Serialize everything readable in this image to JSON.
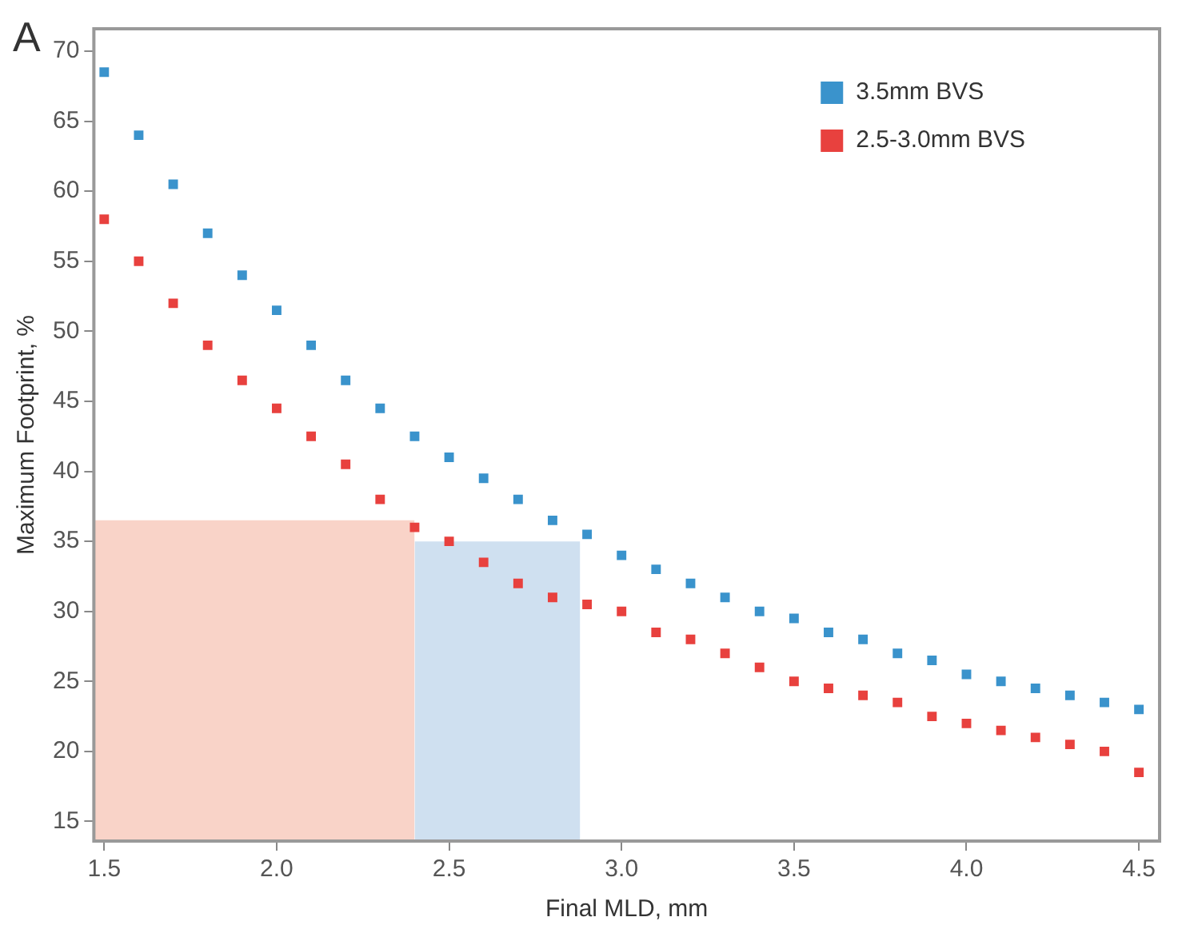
{
  "chart_data": {
    "type": "scatter",
    "xlabel": "Final MLD, mm",
    "ylabel": "Maximum Footprint, %",
    "annotations": [
      "A"
    ],
    "xlim": [
      1.47,
      4.56
    ],
    "xticks": [
      {
        "value": 1.5,
        "label": "1.5"
      },
      {
        "value": 2,
        "label": "2.0"
      },
      {
        "value": 2.5,
        "label": "2.5"
      },
      {
        "value": 3,
        "label": "3.0"
      },
      {
        "value": 3.5,
        "label": "3.5"
      },
      {
        "value": 4,
        "label": "4.0"
      },
      {
        "value": 4.5,
        "label": "4.5"
      }
    ],
    "ylim": [
      13.6,
      71.6
    ],
    "yticks": [
      15,
      20,
      25,
      30,
      35,
      40,
      45,
      50,
      55,
      60,
      65,
      70
    ],
    "grid": false,
    "legend": "top right",
    "marker": "square",
    "series": [
      {
        "type": "area",
        "marker": "none",
        "color": "#f9d3c8",
        "x": [
          1.47,
          2.4
        ],
        "values": [
          36.5,
          36.5
        ]
      },
      {
        "type": "area",
        "marker": "none",
        "color": "#cfe0f0",
        "x": [
          2.4,
          2.88
        ],
        "values": [
          35,
          35
        ]
      },
      {
        "name": "3.5mm BVS",
        "color": "#3a93cc",
        "x": [
          1.5,
          1.6,
          1.7,
          1.8,
          1.9,
          2.0,
          2.1,
          2.2,
          2.3,
          2.4,
          2.5,
          2.6,
          2.7,
          2.8,
          2.9,
          3.0,
          3.1,
          3.2,
          3.3,
          3.4,
          3.5,
          3.6,
          3.7,
          3.8,
          3.9,
          4.0,
          4.1,
          4.2,
          4.3,
          4.4,
          4.5
        ],
        "values": [
          68.5,
          64,
          60.5,
          57,
          54,
          51.5,
          49,
          46.5,
          44.5,
          42.5,
          41,
          39.5,
          38,
          36.5,
          35.5,
          34,
          33,
          32,
          31,
          30,
          29.5,
          28.5,
          28,
          27,
          26.5,
          25.5,
          25,
          24.5,
          24,
          23.5,
          23
        ]
      },
      {
        "name": "2.5-3.0mm BVS",
        "color": "#e8413e",
        "x": [
          1.5,
          1.6,
          1.7,
          1.8,
          1.9,
          2.0,
          2.1,
          2.2,
          2.3,
          2.4,
          2.5,
          2.6,
          2.7,
          2.8,
          2.9,
          3.0,
          3.1,
          3.2,
          3.3,
          3.4,
          3.5,
          3.6,
          3.7,
          3.8,
          3.9,
          4.0,
          4.1,
          4.2,
          4.3,
          4.4,
          4.5
        ],
        "values": [
          58,
          55,
          52,
          49,
          46.5,
          44.5,
          42.5,
          40.5,
          38,
          36,
          35,
          33.5,
          32,
          31,
          30.5,
          30,
          28.5,
          28,
          27,
          26,
          25,
          24.5,
          24,
          23.5,
          22.5,
          22,
          21.5,
          21,
          20.5,
          20,
          18.5
        ]
      }
    ]
  }
}
